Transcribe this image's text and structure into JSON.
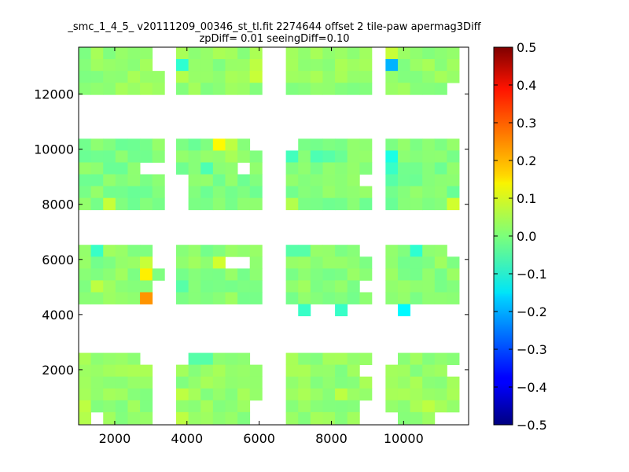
{
  "chart_data": {
    "type": "heatmap",
    "title": "_smc_1_4_5_ v20111209_00346_st_tl.fit 2274644 offset 2 tile-paw apermag3Diff",
    "subtitle": "zpDiff= 0.01 seeingDiff=0.10",
    "xlabel": "",
    "ylabel": "",
    "xlim": [
      1000,
      11800
    ],
    "ylim": [
      0,
      13700
    ],
    "xticks": [
      2000,
      4000,
      6000,
      8000,
      10000
    ],
    "yticks": [
      2000,
      4000,
      6000,
      8000,
      10000,
      12000
    ],
    "grid": false,
    "colormap": "jet",
    "colorbar": {
      "range": [
        -0.5,
        0.5
      ],
      "ticks": [
        "0.5",
        "0.4",
        "0.3",
        "0.2",
        "0.1",
        "0.0",
        "−0.1",
        "−0.2",
        "−0.3",
        "−0.4",
        "−0.5"
      ]
    },
    "cell_size": [
      340,
      430
    ],
    "x_note": "x cell starts in data units",
    "cell_x": [
      1000,
      1340,
      1680,
      2020,
      2360,
      2700,
      3040,
      3700,
      4040,
      4380,
      4720,
      5060,
      5400,
      5740,
      6740,
      7080,
      7420,
      7760,
      8100,
      8440,
      8780,
      9500,
      9840,
      10180,
      10520,
      10860,
      11200
    ],
    "cell_y": [
      13270,
      12840,
      12410,
      11980,
      9950,
      9520,
      9090,
      8660,
      8230,
      7800,
      6100,
      5670,
      5240,
      4810,
      4380,
      3950,
      2180,
      1750,
      1320,
      890,
      460,
      30
    ],
    "blocks": [
      {
        "x": [
          0,
          6
        ],
        "y": [
          0,
          3
        ],
        "base": 0.02
      },
      {
        "x": [
          7,
          13
        ],
        "y": [
          0,
          3
        ],
        "base": 0.02
      },
      {
        "x": [
          14,
          20
        ],
        "y": [
          0,
          3
        ],
        "base": 0.02
      },
      {
        "x": [
          21,
          26
        ],
        "y": [
          0,
          3
        ],
        "base": 0.02
      },
      {
        "x": [
          0,
          6
        ],
        "y": [
          4,
          9
        ],
        "base": 0.0
      },
      {
        "x": [
          7,
          13
        ],
        "y": [
          4,
          9
        ],
        "base": 0.0
      },
      {
        "x": [
          14,
          20
        ],
        "y": [
          4,
          9
        ],
        "base": 0.0
      },
      {
        "x": [
          21,
          26
        ],
        "y": [
          4,
          9
        ],
        "base": 0.0
      },
      {
        "x": [
          0,
          6
        ],
        "y": [
          10,
          15
        ],
        "base": 0.01
      },
      {
        "x": [
          7,
          13
        ],
        "y": [
          10,
          15
        ],
        "base": 0.01
      },
      {
        "x": [
          14,
          20
        ],
        "y": [
          10,
          15
        ],
        "base": 0.01
      },
      {
        "x": [
          21,
          26
        ],
        "y": [
          10,
          15
        ],
        "base": 0.01
      },
      {
        "x": [
          0,
          6
        ],
        "y": [
          16,
          21
        ],
        "base": 0.02
      },
      {
        "x": [
          7,
          13
        ],
        "y": [
          16,
          21
        ],
        "base": 0.02
      },
      {
        "x": [
          14,
          20
        ],
        "y": [
          16,
          21
        ],
        "base": 0.02
      },
      {
        "x": [
          21,
          26
        ],
        "y": [
          16,
          21
        ],
        "base": 0.02
      }
    ],
    "missing": [
      [
        6,
        0
      ],
      [
        21,
        0
      ],
      [
        6,
        1
      ],
      [
        26,
        3
      ],
      [
        5,
        6
      ],
      [
        6,
        6
      ],
      [
        7,
        7
      ],
      [
        12,
        6
      ],
      [
        21,
        7
      ],
      [
        20,
        7
      ],
      [
        7,
        8
      ],
      [
        7,
        9
      ],
      [
        13,
        4
      ],
      [
        14,
        4
      ],
      [
        6,
        10
      ],
      [
        6,
        11
      ],
      [
        11,
        11
      ],
      [
        12,
        11
      ],
      [
        20,
        10
      ],
      [
        26,
        10
      ],
      [
        6,
        13
      ],
      [
        6,
        14
      ],
      [
        20,
        13
      ],
      [
        14,
        15
      ],
      [
        16,
        15
      ],
      [
        17,
        15
      ],
      [
        19,
        15
      ],
      [
        20,
        15
      ],
      [
        21,
        15
      ],
      [
        23,
        15
      ],
      [
        24,
        15
      ],
      [
        25,
        15
      ],
      [
        26,
        15
      ],
      [
        0,
        15
      ],
      [
        1,
        15
      ],
      [
        2,
        15
      ],
      [
        3,
        15
      ],
      [
        4,
        15
      ],
      [
        5,
        15
      ],
      [
        6,
        15
      ],
      [
        7,
        15
      ],
      [
        8,
        15
      ],
      [
        9,
        15
      ],
      [
        10,
        15
      ],
      [
        11,
        15
      ],
      [
        12,
        15
      ],
      [
        13,
        15
      ],
      [
        5,
        16
      ],
      [
        6,
        16
      ],
      [
        7,
        16
      ],
      [
        13,
        16
      ],
      [
        21,
        16
      ],
      [
        6,
        17
      ],
      [
        20,
        17
      ],
      [
        6,
        18
      ],
      [
        6,
        19
      ],
      [
        26,
        17
      ],
      [
        26,
        19
      ],
      [
        1,
        21
      ],
      [
        6,
        20
      ],
      [
        6,
        21
      ],
      [
        13,
        20
      ],
      [
        13,
        21
      ],
      [
        20,
        21
      ],
      [
        21,
        21
      ],
      [
        25,
        21
      ],
      [
        26,
        21
      ],
      [
        20,
        20
      ]
    ],
    "cells": [
      {
        "x": 21,
        "y": 0,
        "value": 0.07
      },
      {
        "x": 21,
        "y": 1,
        "value": -0.2
      },
      {
        "x": 7,
        "y": 1,
        "value": -0.08
      },
      {
        "x": 7,
        "y": 0,
        "value": 0.04
      },
      {
        "x": 13,
        "y": 2,
        "value": 0.07
      },
      {
        "x": 13,
        "y": 1,
        "value": 0.06
      },
      {
        "x": 7,
        "y": 2,
        "value": 0.05
      },
      {
        "x": 10,
        "y": 4,
        "value": 0.13
      },
      {
        "x": 11,
        "y": 4,
        "value": 0.06
      },
      {
        "x": 11,
        "y": 5,
        "value": 0.04
      },
      {
        "x": 9,
        "y": 6,
        "value": -0.05
      },
      {
        "x": 14,
        "y": 5,
        "value": -0.06
      },
      {
        "x": 16,
        "y": 5,
        "value": -0.05
      },
      {
        "x": 17,
        "y": 5,
        "value": -0.04
      },
      {
        "x": 21,
        "y": 5,
        "value": -0.1
      },
      {
        "x": 21,
        "y": 6,
        "value": -0.07
      },
      {
        "x": 21,
        "y": 7,
        "value": -0.04
      },
      {
        "x": 2,
        "y": 9,
        "value": 0.07
      },
      {
        "x": 14,
        "y": 9,
        "value": 0.05
      },
      {
        "x": 26,
        "y": 9,
        "value": 0.08
      },
      {
        "x": 1,
        "y": 10,
        "value": -0.07
      },
      {
        "x": 23,
        "y": 10,
        "value": -0.08
      },
      {
        "x": 14,
        "y": 10,
        "value": -0.04
      },
      {
        "x": 15,
        "y": 10,
        "value": -0.04
      },
      {
        "x": 5,
        "y": 11,
        "value": 0.07
      },
      {
        "x": 10,
        "y": 11,
        "value": 0.08
      },
      {
        "x": 5,
        "y": 12,
        "value": 0.14
      },
      {
        "x": 7,
        "y": 13,
        "value": -0.04
      },
      {
        "x": 1,
        "y": 13,
        "value": 0.06
      },
      {
        "x": 5,
        "y": 14,
        "value": 0.23
      },
      {
        "x": 15,
        "y": 15,
        "value": -0.07
      },
      {
        "x": 18,
        "y": 15,
        "value": -0.07
      },
      {
        "x": 22,
        "y": 15,
        "value": -0.13
      },
      {
        "x": 8,
        "y": 16,
        "value": -0.04
      },
      {
        "x": 9,
        "y": 16,
        "value": -0.04
      },
      {
        "x": 7,
        "y": 19,
        "value": 0.06
      },
      {
        "x": 7,
        "y": 21,
        "value": 0.06
      },
      {
        "x": 18,
        "y": 19,
        "value": 0.06
      },
      {
        "x": 0,
        "y": 20,
        "value": 0.06
      },
      {
        "x": 24,
        "y": 20,
        "value": 0.06
      },
      {
        "x": 26,
        "y": 19,
        "value": 0.04
      },
      {
        "x": 0,
        "y": 21,
        "value": 0.05
      }
    ]
  }
}
